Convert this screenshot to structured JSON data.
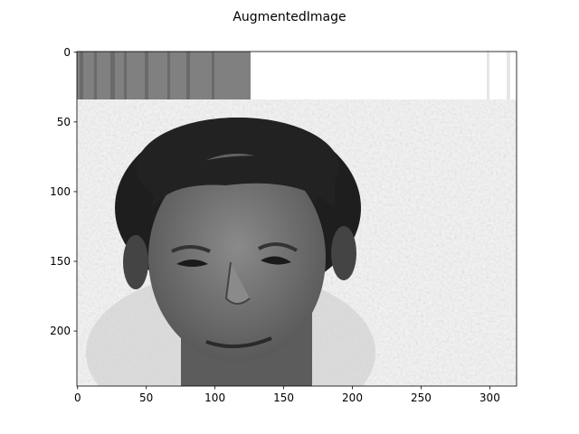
{
  "chart_data": {
    "type": "image",
    "title": "AugmentedImage",
    "xlim": [
      -0.5,
      319.5
    ],
    "ylim": [
      239.5,
      -0.5
    ],
    "xticks": [
      0,
      50,
      100,
      150,
      200,
      250,
      300
    ],
    "yticks": [
      0,
      50,
      100,
      150,
      200
    ]
  }
}
